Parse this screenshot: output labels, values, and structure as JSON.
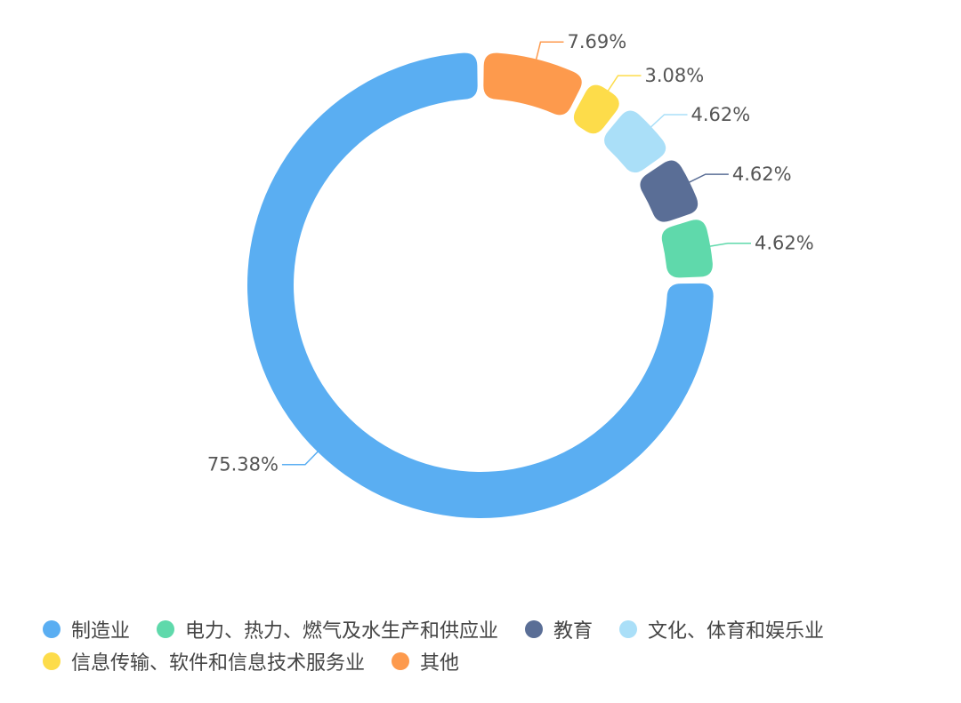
{
  "chart_data": {
    "type": "pie",
    "categories": [
      "制造业",
      "电力、热力、燃气及水生产和供应业",
      "教育",
      "文化、体育和娱乐业",
      "信息传输、软件和信息技术服务业",
      "其他"
    ],
    "values": [
      75.38,
      4.62,
      4.62,
      4.62,
      3.08,
      7.69
    ],
    "labels": [
      "75.38%",
      "4.62%",
      "4.62%",
      "4.62%",
      "3.08%",
      "7.69%"
    ],
    "colors": [
      "#5aaef2",
      "#5fd9ab",
      "#5a6e96",
      "#aadff8",
      "#fddc4a",
      "#fd9a4d"
    ],
    "donut": true,
    "start": "top",
    "legend_position": "bottom"
  },
  "legend": {
    "row1": [
      {
        "label": "制造业",
        "color": "#5aaef2"
      },
      {
        "label": "电力、热力、燃气及水生产和供应业",
        "color": "#5fd9ab"
      },
      {
        "label": "教育",
        "color": "#5a6e96"
      },
      {
        "label": "文化、体育和娱乐业",
        "color": "#aadff8"
      }
    ],
    "row2": [
      {
        "label": "信息传输、软件和信息技术服务业",
        "color": "#fddc4a"
      },
      {
        "label": "其他",
        "color": "#fd9a4d"
      }
    ]
  }
}
